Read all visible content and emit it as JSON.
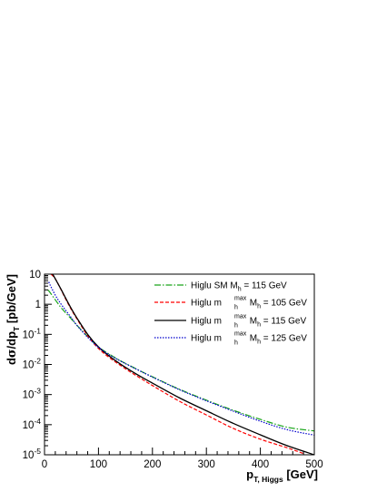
{
  "chart_data": {
    "type": "line",
    "scale": {
      "x": "linear",
      "y": "log"
    },
    "xlim": [
      0,
      500
    ],
    "ylim": [
      1e-05,
      10
    ],
    "grid": false,
    "legend_position": "top-right",
    "x_axis": {
      "title": {
        "main": "p",
        "sub": "T, Higgs",
        "unit": " [GeV]"
      },
      "ticks": [
        {
          "value": 0,
          "label": "0"
        },
        {
          "value": 100,
          "label": "100"
        },
        {
          "value": 200,
          "label": "200"
        },
        {
          "value": 300,
          "label": "300"
        },
        {
          "value": 400,
          "label": "400"
        },
        {
          "value": 500,
          "label": "500"
        }
      ]
    },
    "y_axis": {
      "title": {
        "pre": "d",
        "sigma": "σ",
        "mid": "/dp",
        "sub": "T",
        "unit": " [pb/GeV]"
      },
      "ticks": [
        {
          "value": 1e-05,
          "base": "10",
          "exp": "-5"
        },
        {
          "value": 0.0001,
          "base": "10",
          "exp": "-4"
        },
        {
          "value": 0.001,
          "base": "10",
          "exp": "-3"
        },
        {
          "value": 0.01,
          "base": "10",
          "exp": "-2"
        },
        {
          "value": 0.1,
          "base": "10",
          "exp": "-1"
        },
        {
          "value": 1,
          "base": "1",
          "exp": ""
        },
        {
          "value": 10,
          "base": "10",
          "exp": ""
        }
      ]
    },
    "series": [
      {
        "label": {
          "prefix": "Higlu SM M",
          "sub": "h",
          "suffix": " = 115 GeV",
          "has_max": false
        },
        "color": "#1aa51a",
        "dash": "7,2,1.5,2",
        "x": [
          6,
          10,
          20,
          30,
          40,
          50,
          60,
          80,
          100,
          120,
          140,
          160,
          180,
          200,
          250,
          300,
          350,
          400,
          450,
          500
        ],
        "y": [
          3.0,
          2.5,
          1.4,
          0.8,
          0.5,
          0.32,
          0.2,
          0.085,
          0.038,
          0.022,
          0.0135,
          0.0088,
          0.0058,
          0.0039,
          0.0015,
          0.00065,
          0.0003,
          0.00015,
          8.2e-05,
          6.2e-05
        ]
      },
      {
        "label": {
          "prefix": "Higlu m",
          "sup": "max",
          "sub": "h",
          "suffix": " M",
          "sub2": "h",
          "suffix2": " = 105 GeV",
          "has_max": true
        },
        "color": "#ff0000",
        "dash": "4,2",
        "x": [
          12,
          20,
          30,
          40,
          50,
          60,
          80,
          100,
          120,
          140,
          160,
          180,
          200,
          250,
          300,
          350,
          400,
          450,
          480
        ],
        "y": [
          10,
          7.0,
          3.2,
          1.4,
          0.65,
          0.33,
          0.09,
          0.034,
          0.017,
          0.0095,
          0.0055,
          0.0033,
          0.002,
          0.0006,
          0.00021,
          7.5e-05,
          3.3e-05,
          1.7e-05,
          1.1e-05
        ]
      },
      {
        "label": {
          "prefix": "Higlu m",
          "sup": "max",
          "sub": "h",
          "suffix": " M",
          "sub2": "h",
          "suffix2": " = 115 GeV",
          "has_max": true
        },
        "color": "#000000",
        "dash": "",
        "x": [
          15,
          20,
          30,
          40,
          50,
          60,
          80,
          100,
          120,
          140,
          160,
          180,
          200,
          250,
          300,
          350,
          400,
          450,
          500
        ],
        "y": [
          10,
          7.0,
          3.3,
          1.5,
          0.7,
          0.35,
          0.1,
          0.038,
          0.019,
          0.0105,
          0.0062,
          0.0038,
          0.0024,
          0.00078,
          0.00029,
          0.00011,
          4.6e-05,
          2e-05,
          1e-05
        ]
      },
      {
        "label": {
          "prefix": "Higlu m",
          "sup": "max",
          "sub": "h",
          "suffix": " M",
          "sub2": "h",
          "suffix2": " = 125 GeV",
          "has_max": true
        },
        "color": "#0000cc",
        "dash": "1.5,1.5",
        "x": [
          8,
          10,
          20,
          30,
          40,
          50,
          60,
          80,
          100,
          120,
          140,
          160,
          180,
          200,
          250,
          300,
          350,
          400,
          450,
          500
        ],
        "y": [
          5.5,
          4.5,
          2.0,
          1.05,
          0.6,
          0.35,
          0.2,
          0.08,
          0.037,
          0.021,
          0.0132,
          0.0086,
          0.0057,
          0.0038,
          0.00145,
          0.00062,
          0.00028,
          0.00013,
          6.8e-05,
          4.5e-05
        ]
      }
    ]
  }
}
